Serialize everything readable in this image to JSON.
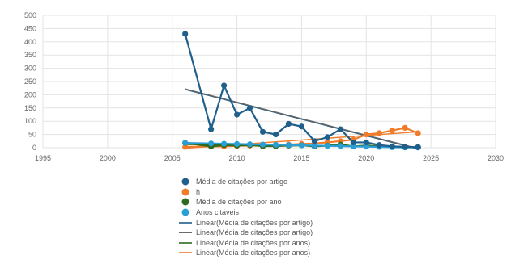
{
  "chart_data": {
    "type": "line",
    "title": "",
    "xlabel": "",
    "ylabel": "",
    "xlim": [
      1995,
      2030
    ],
    "ylim": [
      0,
      500
    ],
    "xticks": [
      "1995",
      "2000",
      "2005",
      "2010",
      "2015",
      "2020",
      "2025",
      "2030"
    ],
    "yticks": [
      "500",
      "450",
      "400",
      "350",
      "300",
      "250",
      "200",
      "150",
      "100",
      "50",
      "0"
    ],
    "grid": true,
    "legend_position": "bottom",
    "series": [
      {
        "name": "Média de citações por artigo",
        "color": "#1f5f8b",
        "x": [
          2006,
          2008,
          2009,
          2010,
          2011,
          2012,
          2013,
          2014,
          2015,
          2016,
          2017,
          2018,
          2019,
          2020,
          2021,
          2022,
          2023,
          2024
        ],
        "y": [
          430,
          70,
          235,
          125,
          150,
          60,
          50,
          90,
          80,
          25,
          40,
          70,
          20,
          20,
          10,
          5,
          3,
          2
        ]
      },
      {
        "name": "h",
        "color": "#f07c2a",
        "x": [
          2006,
          2008,
          2009,
          2010,
          2011,
          2012,
          2013,
          2014,
          2015,
          2016,
          2017,
          2018,
          2019,
          2020,
          2021,
          2022,
          2023,
          2024
        ],
        "y": [
          3,
          5,
          5,
          7,
          8,
          9,
          10,
          12,
          14,
          16,
          20,
          25,
          30,
          50,
          55,
          65,
          75,
          55
        ]
      },
      {
        "name": "Média de citações por ano",
        "color": "#2e6b1f",
        "x": [
          2006,
          2008,
          2009,
          2010,
          2011,
          2012,
          2013,
          2014,
          2015,
          2016,
          2017,
          2018,
          2019,
          2020,
          2021,
          2022,
          2023,
          2024
        ],
        "y": [
          18,
          5,
          10,
          8,
          10,
          6,
          6,
          8,
          9,
          5,
          8,
          12,
          5,
          8,
          6,
          4,
          3,
          2
        ]
      },
      {
        "name": "Anos citáveis",
        "color": "#2a9fd6",
        "x": [
          2006,
          2008,
          2009,
          2010,
          2011,
          2012,
          2013,
          2014,
          2015,
          2016,
          2017,
          2018,
          2019,
          2020,
          2021,
          2022,
          2023,
          2024
        ],
        "y": [
          18,
          16,
          15,
          14,
          13,
          12,
          11,
          10,
          9,
          8,
          7,
          6,
          5,
          4,
          3,
          2,
          1,
          1
        ]
      }
    ],
    "trendlines": [
      {
        "name": "Linear(Média de citações por artigo)",
        "color": "#1f5f8b",
        "x": [
          2006,
          2024
        ],
        "y": [
          220,
          -5
        ]
      },
      {
        "name": "Linear(Média de citações por artigo)",
        "color": "#666666",
        "x": [
          2006,
          2024
        ],
        "y": [
          222,
          -3
        ]
      },
      {
        "name": "Linear(Média de citações por anos)",
        "color": "#2e6b1f",
        "x": [
          2006,
          2024
        ],
        "y": [
          12,
          3
        ]
      },
      {
        "name": "Linear(Média de citações por anos)",
        "color": "#f07c2a",
        "x": [
          2006,
          2024
        ],
        "y": [
          -2,
          60
        ]
      }
    ]
  },
  "legend": {
    "items": [
      {
        "label": "Média de citações por artigo",
        "color": "#1f5f8b",
        "kind": "marker"
      },
      {
        "label": "h",
        "color": "#f07c2a",
        "kind": "marker"
      },
      {
        "label": "Média de citações por ano",
        "color": "#2e6b1f",
        "kind": "marker"
      },
      {
        "label": "Anos citáveis",
        "color": "#2a9fd6",
        "kind": "marker"
      },
      {
        "label": "Linear(Média de citações por artigo)",
        "color": "#1f5f8b",
        "kind": "line"
      },
      {
        "label": "Linear(Média de citações por artigo)",
        "color": "#444444",
        "kind": "line"
      },
      {
        "label": "Linear(Média de citações por anos)",
        "color": "#2e6b1f",
        "kind": "line"
      },
      {
        "label": "Linear(Média de citações por anos)",
        "color": "#f07c2a",
        "kind": "line"
      }
    ]
  }
}
